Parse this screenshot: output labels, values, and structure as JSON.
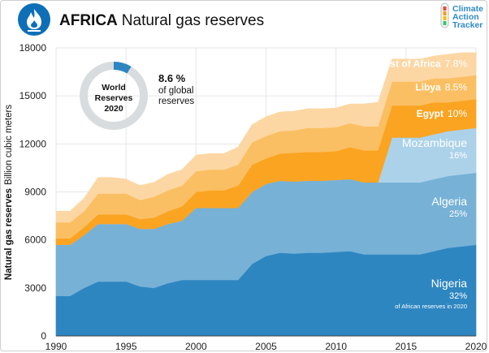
{
  "header": {
    "title_bold": "AFRICA",
    "title_rest": "Natural gas reserves",
    "logo_line1": "Climate",
    "logo_line2": "Action",
    "logo_line3": "Tracker"
  },
  "donut": {
    "center_line1": "World",
    "center_line2": "Reserves",
    "center_line3": "2020",
    "share_value": "8.6 %",
    "share_text1": "of global",
    "share_text2": "reserves",
    "share_fraction": 0.086
  },
  "colors": {
    "nigeria": "#2e86c1",
    "algeria": "#77b1d6",
    "mozambique": "#acd2ea",
    "egypt": "#faa422",
    "libya": "#fbbf63",
    "rest": "#fcd7a4",
    "donut_ring": "#d9dcde",
    "donut_share": "#2e86c1",
    "logo_blue": "#2f8bc9",
    "icon_bg": "#0e6fb7"
  },
  "chart_data": {
    "type": "area",
    "stacked": true,
    "ylabel_bold": "Natural gas reserves",
    "ylabel_unit": "Billion cubic meters",
    "ylim": [
      0,
      18000
    ],
    "xlim": [
      1990,
      2020
    ],
    "yticks": [
      0,
      3000,
      6000,
      9000,
      12000,
      15000,
      18000
    ],
    "ytick_labels": [
      "0",
      "3000",
      "6000",
      "9000",
      "12000",
      "15000",
      "18000"
    ],
    "xticks": [
      1990,
      1995,
      2000,
      2005,
      2010,
      2015,
      2020
    ],
    "xtick_labels": [
      "1990",
      "1995",
      "2000",
      "2005",
      "2010",
      "2015",
      "2020"
    ],
    "grid": true,
    "x": [
      1990,
      1991,
      1992,
      1993,
      1994,
      1995,
      1996,
      1997,
      1998,
      1999,
      2000,
      2001,
      2002,
      2003,
      2004,
      2005,
      2006,
      2007,
      2008,
      2009,
      2010,
      2011,
      2012,
      2013,
      2014,
      2015,
      2016,
      2017,
      2018,
      2019,
      2020
    ],
    "series": [
      {
        "name": "Nigeria",
        "color_key": "nigeria",
        "share": "32%",
        "note": "of African reserves in 2020",
        "values": [
          2500,
          2500,
          3000,
          3400,
          3400,
          3400,
          3100,
          3000,
          3300,
          3500,
          3500,
          3500,
          3500,
          3500,
          4500,
          5000,
          5200,
          5150,
          5200,
          5200,
          5250,
          5300,
          5100,
          5100,
          5100,
          5100,
          5100,
          5300,
          5500,
          5600,
          5700
        ]
      },
      {
        "name": "Algeria",
        "color_key": "algeria",
        "share": "25%",
        "values": [
          3200,
          3200,
          3300,
          3600,
          3600,
          3600,
          3600,
          3700,
          3700,
          3700,
          4500,
          4500,
          4500,
          4500,
          4500,
          4500,
          4500,
          4500,
          4500,
          4500,
          4500,
          4500,
          4500,
          4500,
          4500,
          4500,
          4500,
          4500,
          4500,
          4500,
          4500
        ]
      },
      {
        "name": "Mozambique",
        "color_key": "mozambique",
        "share": "16%",
        "values": [
          0,
          0,
          0,
          0,
          0,
          0,
          0,
          0,
          0,
          0,
          0,
          0,
          0,
          0,
          0,
          0,
          0,
          0,
          0,
          0,
          0,
          0,
          0,
          0,
          2800,
          2800,
          2800,
          2800,
          2800,
          2800,
          2800
        ]
      },
      {
        "name": "Egypt",
        "color_key": "egypt",
        "share": "10%",
        "values": [
          400,
          400,
          500,
          600,
          600,
          600,
          600,
          700,
          800,
          900,
          1000,
          1100,
          1100,
          1400,
          1700,
          1600,
          1700,
          1800,
          1800,
          1800,
          1800,
          2000,
          2000,
          2000,
          2000,
          2000,
          2000,
          2000,
          1800,
          1800,
          1800
        ]
      },
      {
        "name": "Libya",
        "color_key": "libya",
        "share": "8.5%",
        "values": [
          1000,
          1000,
          1000,
          1300,
          1300,
          1300,
          1200,
          1300,
          1300,
          1300,
          1300,
          1300,
          1300,
          1300,
          1400,
          1400,
          1400,
          1400,
          1500,
          1500,
          1500,
          1500,
          1500,
          1500,
          1500,
          1500,
          1500,
          1500,
          1500,
          1500,
          1500
        ]
      },
      {
        "name": "Rest of Africa",
        "color_key": "rest",
        "share": "7.8%",
        "values": [
          700,
          700,
          800,
          1000,
          1000,
          900,
          900,
          900,
          1000,
          1000,
          1000,
          1000,
          1000,
          1100,
          1100,
          1200,
          1200,
          1200,
          1200,
          1200,
          1200,
          1200,
          1400,
          1500,
          1400,
          1400,
          1400,
          1400,
          1500,
          1500,
          1400
        ]
      }
    ]
  }
}
